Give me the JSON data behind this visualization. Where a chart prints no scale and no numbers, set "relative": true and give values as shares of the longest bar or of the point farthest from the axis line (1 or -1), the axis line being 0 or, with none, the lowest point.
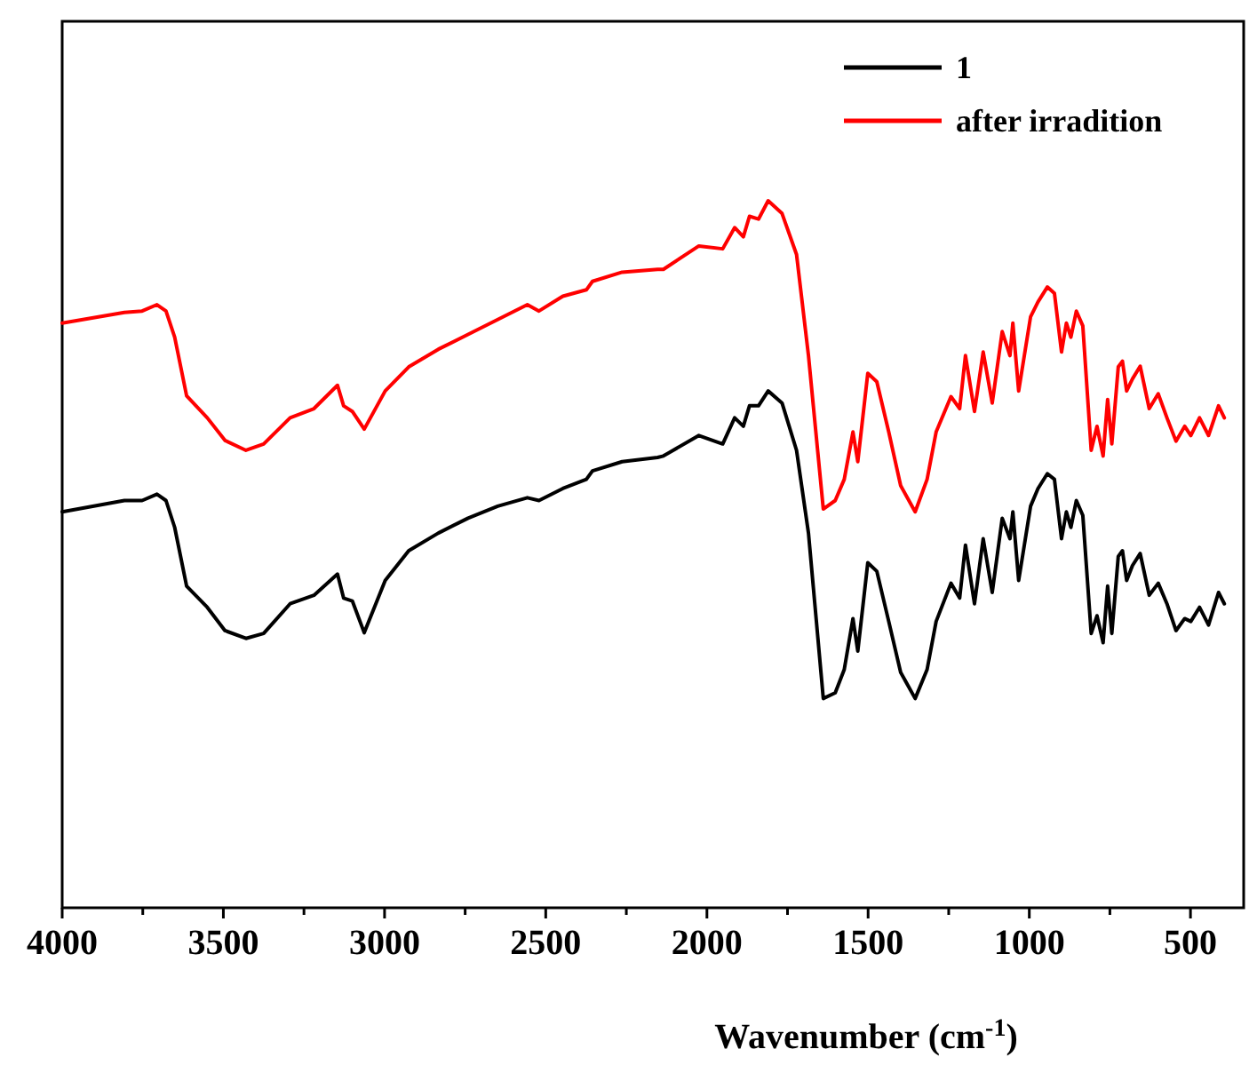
{
  "chart_data": {
    "type": "line",
    "xlabel": "Wavenumber (cm$^{-1}$)",
    "relative": true,
    "xlim": [
      4000,
      335
    ],
    "xticks": [
      4000,
      {
        "value": 3750,
        "label": null
      },
      3500,
      {
        "value": 3250,
        "label": null
      },
      3000,
      {
        "value": 2750,
        "label": null
      },
      2500,
      {
        "value": 2250,
        "label": null
      },
      2000,
      {
        "value": 1750,
        "label": null
      },
      1500,
      {
        "value": 1250,
        "label": null
      },
      1000,
      {
        "value": 750,
        "label": null
      },
      500
    ],
    "tick_labels": "x",
    "grid": false,
    "legend": "top right",
    "marker": "none",
    "line_style": "solid",
    "x": [
      4000,
      3807,
      3752,
      3706,
      3678,
      3651,
      3614,
      3550,
      3495,
      3430,
      3375,
      3293,
      3219,
      3146,
      3127,
      3100,
      3063,
      2998,
      2925,
      2833,
      2741,
      2649,
      2557,
      2521,
      2447,
      2374,
      2355,
      2263,
      2153,
      2135,
      2025,
      1951,
      1914,
      1887,
      1868,
      1840,
      1810,
      1767,
      1722,
      1685,
      1639,
      1602,
      1574,
      1547,
      1532,
      1501,
      1473,
      1436,
      1399,
      1354,
      1317,
      1289,
      1243,
      1216,
      1198,
      1170,
      1143,
      1115,
      1084,
      1060,
      1051,
      1033,
      996,
      973,
      944,
      922,
      900,
      885,
      871,
      854,
      834,
      808,
      790,
      771,
      757,
      744,
      724,
      711,
      698,
      680,
      656,
      628,
      600,
      573,
      545,
      518,
      499,
      472,
      444,
      413,
      395
    ],
    "series": [
      {
        "name": "1",
        "color": "#000000",
        "values": [
          0.56,
          0.576,
          0.576,
          0.585,
          0.576,
          0.538,
          0.455,
          0.425,
          0.392,
          0.381,
          0.388,
          0.43,
          0.442,
          0.472,
          0.438,
          0.434,
          0.389,
          0.463,
          0.505,
          0.53,
          0.551,
          0.568,
          0.58,
          0.576,
          0.593,
          0.606,
          0.618,
          0.631,
          0.637,
          0.639,
          0.668,
          0.656,
          0.693,
          0.681,
          0.71,
          0.71,
          0.731,
          0.714,
          0.647,
          0.53,
          0.296,
          0.304,
          0.337,
          0.409,
          0.363,
          0.488,
          0.476,
          0.405,
          0.333,
          0.296,
          0.337,
          0.405,
          0.459,
          0.438,
          0.513,
          0.43,
          0.522,
          0.446,
          0.551,
          0.522,
          0.56,
          0.463,
          0.568,
          0.593,
          0.614,
          0.606,
          0.522,
          0.56,
          0.538,
          0.576,
          0.555,
          0.388,
          0.413,
          0.375,
          0.455,
          0.388,
          0.497,
          0.505,
          0.463,
          0.484,
          0.501,
          0.442,
          0.459,
          0.43,
          0.392,
          0.409,
          0.405,
          0.425,
          0.4,
          0.446,
          0.43
        ]
      },
      {
        "name": "after irradition",
        "color": "#ff0000",
        "values": [
          0.827,
          0.842,
          0.844,
          0.853,
          0.844,
          0.807,
          0.724,
          0.693,
          0.661,
          0.647,
          0.656,
          0.693,
          0.706,
          0.739,
          0.71,
          0.702,
          0.677,
          0.731,
          0.765,
          0.79,
          0.811,
          0.832,
          0.853,
          0.844,
          0.865,
          0.874,
          0.886,
          0.899,
          0.903,
          0.903,
          0.936,
          0.932,
          0.962,
          0.949,
          0.978,
          0.974,
          1.0,
          0.982,
          0.924,
          0.781,
          0.564,
          0.576,
          0.606,
          0.673,
          0.631,
          0.756,
          0.744,
          0.673,
          0.597,
          0.56,
          0.606,
          0.673,
          0.723,
          0.706,
          0.781,
          0.702,
          0.786,
          0.714,
          0.815,
          0.781,
          0.827,
          0.731,
          0.836,
          0.857,
          0.878,
          0.869,
          0.786,
          0.827,
          0.807,
          0.844,
          0.823,
          0.647,
          0.681,
          0.639,
          0.719,
          0.656,
          0.765,
          0.773,
          0.731,
          0.748,
          0.766,
          0.706,
          0.727,
          0.693,
          0.66,
          0.681,
          0.668,
          0.693,
          0.668,
          0.71,
          0.693
        ]
      }
    ]
  }
}
